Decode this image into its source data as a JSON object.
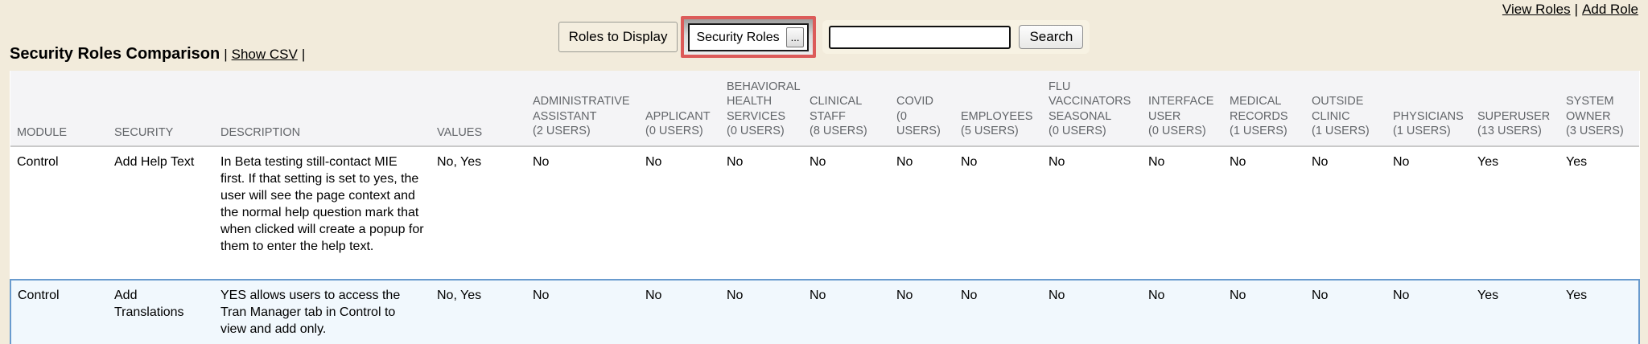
{
  "page": {
    "background": "#F2EBDB"
  },
  "header_links": {
    "view_roles": "View Roles",
    "separator": "|",
    "add_role": "Add Role"
  },
  "toolbar": {
    "roles_to_display_label": "Roles to Display",
    "roles_filter": {
      "value": "Security Roles",
      "ellipsis_button": "...",
      "highlight_color": "#DC5B59"
    },
    "search": {
      "input_value": "",
      "button_label": "Search"
    }
  },
  "title": {
    "text": "Security Roles Comparison",
    "separator_left": "|",
    "show_csv_label": "Show CSV",
    "separator_right": "|"
  },
  "table": {
    "fixed_columns": [
      {
        "key": "module",
        "label": "MODULE"
      },
      {
        "key": "security",
        "label": "SECURITY"
      },
      {
        "key": "description",
        "label": "DESCRIPTION"
      },
      {
        "key": "values",
        "label": "VALUES"
      }
    ],
    "role_columns": [
      {
        "name": "ADMINISTRATIVE ASSISTANT",
        "users": "(2 USERS)"
      },
      {
        "name": "APPLICANT",
        "users": "(0 USERS)"
      },
      {
        "name": "BEHAVIORAL HEALTH SERVICES",
        "users": "(0 USERS)"
      },
      {
        "name": "CLINICAL STAFF",
        "users": "(8 USERS)"
      },
      {
        "name": "COVID",
        "users": "(0 USERS)"
      },
      {
        "name": "EMPLOYEES",
        "users": "(5 USERS)"
      },
      {
        "name": "FLU VACCINATORS SEASONAL",
        "users": "(0 USERS)"
      },
      {
        "name": "INTERFACE USER",
        "users": "(0 USERS)"
      },
      {
        "name": "MEDICAL RECORDS",
        "users": "(1 USERS)"
      },
      {
        "name": "OUTSIDE CLINIC",
        "users": "(1 USERS)"
      },
      {
        "name": "PHYSICIANS",
        "users": "(1 USERS)"
      },
      {
        "name": "SUPERUSER",
        "users": "(13 USERS)"
      },
      {
        "name": "SYSTEM OWNER",
        "users": "(3 USERS)"
      }
    ],
    "rows": [
      {
        "module": "Control",
        "security": "Add Help Text",
        "description": "In Beta testing still-contact MIE first. If that setting is set to yes, the user will see the page context and the normal help question mark that when clicked will create a popup for them to enter the help text.",
        "values": "No, Yes",
        "roles": [
          "No",
          "No",
          "No",
          "No",
          "No",
          "No",
          "No",
          "No",
          "No",
          "No",
          "No",
          "Yes",
          "Yes"
        ],
        "highlighted": false
      },
      {
        "module": "Control",
        "security": "Add Translations",
        "description": "YES allows users to access the Tran Manager tab in Control to view and add only.",
        "values": "No, Yes",
        "roles": [
          "No",
          "No",
          "No",
          "No",
          "No",
          "No",
          "No",
          "No",
          "No",
          "No",
          "No",
          "Yes",
          "Yes"
        ],
        "highlighted": true
      }
    ]
  },
  "colors": {
    "page_background": "#F2EBDB",
    "table_header_bg": "#F4F4F6",
    "header_text": "#63666A",
    "highlight_row_bg": "#F1F8FD",
    "highlight_row_border": "#699BCE",
    "filter_highlight": "#DC5B59"
  }
}
